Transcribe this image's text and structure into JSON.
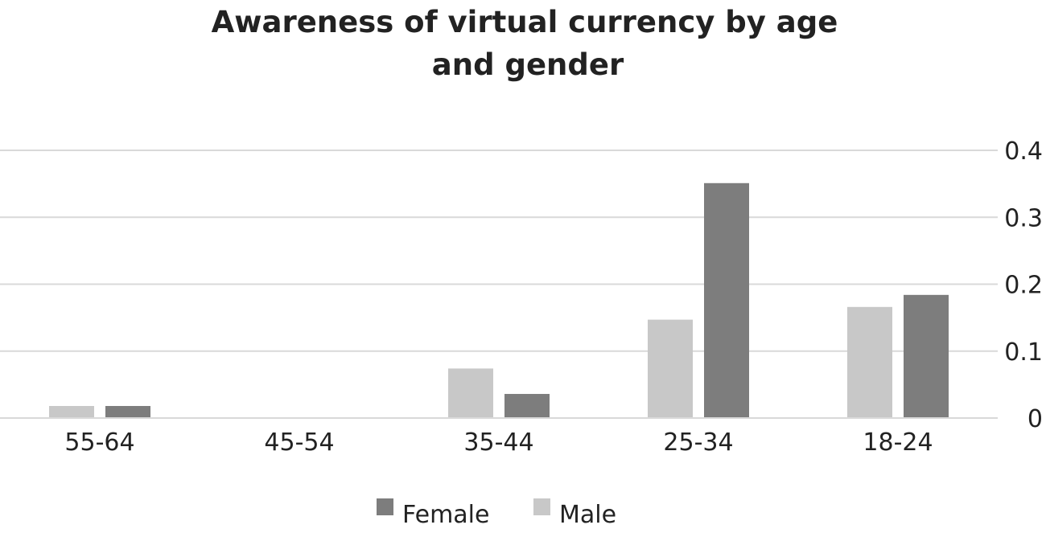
{
  "chart_data": {
    "type": "bar",
    "title_lines": [
      "Awareness of virtual currency by age",
      "and gender"
    ],
    "xlabel": "",
    "ylabel": "",
    "categories": [
      "55-64",
      "45-54",
      "35-44",
      "25-34",
      "18-24"
    ],
    "series": [
      {
        "name": "Male",
        "values": [
          0.018,
          0,
          0.074,
          0.147,
          0.166
        ],
        "color": "#c8c8c8"
      },
      {
        "name": "Female",
        "values": [
          0.018,
          0,
          0.036,
          0.351,
          0.184
        ],
        "color": "#7d7d7d"
      }
    ],
    "ylim": [
      0,
      0.4
    ],
    "yticks": [
      "0",
      "0.1",
      "0.2",
      "0.3",
      "0.4"
    ],
    "y_axis_side": "right",
    "grid": true,
    "legend": {
      "position": "bottom",
      "entries": [
        "Female",
        "Male"
      ]
    }
  }
}
